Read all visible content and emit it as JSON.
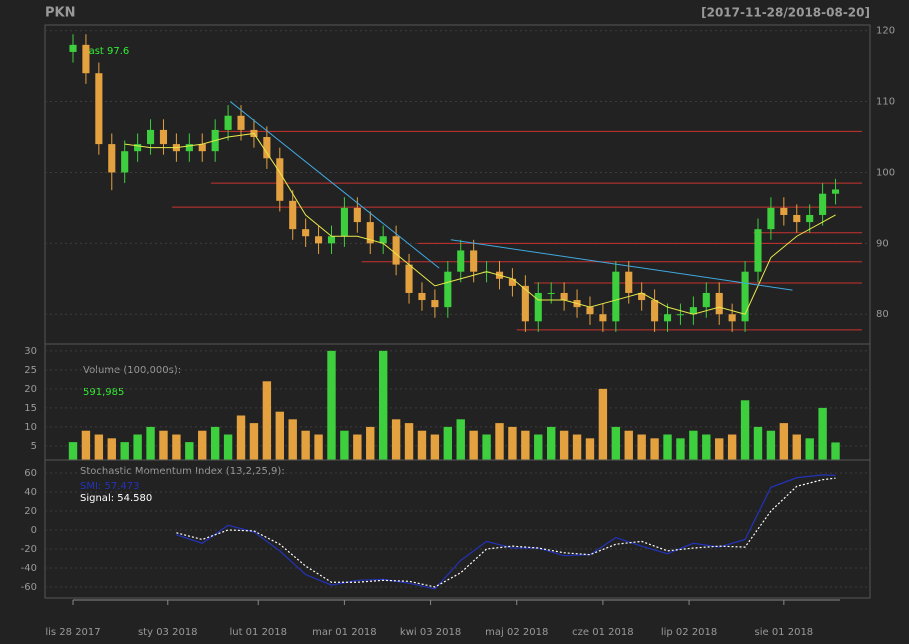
{
  "chart_data": [
    {
      "type": "candlestick",
      "title": "PKN",
      "subtitle": "[2017-11-28/2018-08-20]",
      "annotation": "Last 97.6",
      "up_color": "#3ecf3e",
      "down_color": "#e3a13f",
      "x": [
        0,
        3,
        6,
        9,
        12,
        15,
        18,
        21,
        24,
        27,
        30,
        33,
        36,
        39,
        42,
        45,
        48,
        51,
        54,
        57,
        60,
        63,
        66,
        69,
        72,
        75,
        78,
        81,
        84,
        87,
        90,
        93,
        96,
        99,
        102,
        105,
        108,
        111,
        114,
        117,
        120,
        123,
        126,
        129,
        132,
        135,
        138,
        141,
        144,
        147,
        150,
        153,
        156,
        159,
        162,
        165,
        168,
        171,
        174,
        177
      ],
      "open": [
        117,
        118,
        114,
        104,
        100,
        103,
        104,
        106,
        104,
        103,
        104,
        103,
        106,
        108,
        106,
        105,
        102,
        96,
        92,
        91,
        90,
        91,
        95,
        93,
        90,
        91,
        87,
        83,
        82,
        81,
        86,
        89,
        86,
        86,
        85,
        84,
        79,
        83,
        83,
        82,
        81,
        80,
        79,
        86,
        83,
        82,
        79,
        80,
        80,
        81,
        83,
        80,
        79,
        86,
        92,
        95,
        94,
        93,
        94,
        97
      ],
      "high": [
        119.5,
        119.5,
        115.5,
        105.5,
        104.5,
        105.5,
        107.5,
        107.5,
        105.5,
        105.5,
        105.5,
        107.5,
        109.5,
        109.5,
        107.5,
        106.5,
        103.5,
        97.5,
        93.5,
        92.5,
        92.5,
        96.5,
        96.5,
        94.5,
        92.5,
        92.5,
        88.5,
        84.5,
        83.5,
        87.5,
        90.5,
        90.5,
        87.5,
        87.5,
        86.5,
        85.5,
        84.5,
        84.5,
        84.5,
        83.5,
        82.5,
        81.5,
        87.5,
        87.5,
        84.5,
        83.5,
        81.5,
        81.5,
        82.5,
        84.5,
        84.5,
        81.5,
        87.5,
        93.5,
        96.5,
        96.5,
        95.5,
        95.5,
        98.5,
        99.1
      ],
      "low": [
        115.5,
        112.5,
        102.5,
        97.5,
        98.5,
        101.5,
        102.5,
        102.5,
        101.5,
        101.5,
        101.5,
        101.5,
        104.5,
        104.5,
        103.5,
        100.5,
        94.5,
        90.5,
        89.5,
        88.5,
        88.5,
        89.5,
        91.5,
        88.5,
        88.5,
        85.5,
        81.5,
        80.5,
        79.5,
        79.5,
        84.5,
        84.5,
        84.5,
        83.5,
        82.5,
        77.5,
        77.5,
        81.5,
        80.5,
        79.5,
        78.5,
        77.5,
        77.5,
        81.5,
        80.5,
        77.5,
        77.5,
        78.5,
        78.5,
        79.5,
        78.5,
        77.5,
        77.5,
        84.5,
        90.5,
        92.5,
        91.5,
        91.5,
        92.5,
        95.5
      ],
      "close": [
        118,
        114,
        104,
        100,
        103,
        104,
        106,
        104,
        103,
        104,
        103,
        106,
        108,
        106,
        105,
        102,
        96,
        92,
        91,
        90,
        91,
        95,
        93,
        90,
        91,
        87,
        83,
        82,
        81,
        86,
        89,
        86,
        86,
        85,
        84,
        79,
        83,
        83,
        82,
        81,
        80,
        79,
        86,
        83,
        82,
        79,
        80,
        80,
        81,
        83,
        80,
        79,
        86,
        92,
        95,
        94,
        93,
        94,
        97,
        97.6
      ],
      "sma": {
        "color": "#e8e84a",
        "x": [
          12,
          18,
          24,
          30,
          36,
          42,
          48,
          54,
          60,
          66,
          72,
          78,
          84,
          90,
          96,
          102,
          108,
          114,
          120,
          126,
          132,
          138,
          144,
          150,
          156,
          162,
          168,
          174,
          177
        ],
        "values": [
          104,
          103.5,
          103.5,
          104,
          105,
          105.5,
          100,
          94,
          91,
          91,
          90,
          87,
          84,
          85,
          86,
          85,
          82,
          82,
          81,
          82,
          83,
          81,
          80,
          81,
          80,
          88,
          91,
          93,
          94
        ]
      },
      "level_color": "#c8322f",
      "levels": [
        {
          "value": 105.8,
          "from": 32.6
        },
        {
          "value": 98.5,
          "from": 32
        },
        {
          "value": 95.1,
          "from": 23
        },
        {
          "value": 91.5,
          "from": 158
        },
        {
          "value": 90,
          "from": 80
        },
        {
          "value": 87.4,
          "from": 67
        },
        {
          "value": 84.4,
          "from": 107
        },
        {
          "value": 77.8,
          "from": 103
        }
      ],
      "trend_color": "#3fa9e0",
      "trendlines": [
        {
          "x": [
            36.5,
            85
          ],
          "values": [
            110,
            86.5
          ]
        },
        {
          "x": [
            87.7,
            167
          ],
          "values": [
            90.5,
            83.4
          ]
        }
      ],
      "xlim": [
        -6.5,
        185
      ],
      "ylim": [
        75.8,
        120.8
      ],
      "yticks": [
        80,
        90,
        100,
        110,
        120
      ]
    },
    {
      "type": "bar",
      "title": "Volume (100,000s):",
      "annotation": "591,985",
      "x": [
        0,
        3,
        6,
        9,
        12,
        15,
        18,
        21,
        24,
        27,
        30,
        33,
        36,
        39,
        42,
        45,
        48,
        51,
        54,
        57,
        60,
        63,
        66,
        69,
        72,
        75,
        78,
        81,
        84,
        87,
        90,
        93,
        96,
        99,
        102,
        105,
        108,
        111,
        114,
        117,
        120,
        123,
        126,
        129,
        132,
        135,
        138,
        141,
        144,
        147,
        150,
        153,
        156,
        159,
        162,
        165,
        168,
        171,
        174,
        177
      ],
      "values": [
        6,
        9,
        8,
        7,
        6,
        8,
        10,
        9,
        8,
        6,
        9,
        10,
        8,
        13,
        11,
        22,
        14,
        12,
        9,
        8,
        30,
        9,
        8,
        10,
        30,
        12,
        11,
        9,
        8,
        10,
        12,
        9,
        8,
        11,
        10,
        9,
        8,
        10,
        9,
        8,
        7,
        20,
        10,
        9,
        8,
        7,
        8,
        7,
        9,
        8,
        7,
        8,
        17,
        10,
        9,
        11,
        8,
        7,
        15,
        5.92
      ],
      "xlim": [
        -6.5,
        185
      ],
      "ylim": [
        1.3,
        31.8
      ],
      "yticks": [
        5,
        10,
        15,
        20,
        25,
        30
      ]
    },
    {
      "type": "line",
      "title": "Stochastic Momentum Index (13,2,25,9):",
      "x": [
        24,
        30,
        36,
        42,
        48,
        54,
        60,
        66,
        72,
        78,
        84,
        90,
        96,
        102,
        108,
        114,
        120,
        126,
        132,
        138,
        144,
        150,
        156,
        162,
        168,
        174,
        177
      ],
      "series": [
        {
          "name": "SMI: 57.473",
          "color": "#2233bb",
          "dashed": false,
          "values": [
            -5,
            -14,
            5,
            -2,
            -22,
            -47,
            -58,
            -53,
            -52,
            -56,
            -62,
            -32,
            -12,
            -19,
            -19,
            -27,
            -26,
            -8,
            -17,
            -25,
            -14,
            -18,
            -10,
            45,
            55,
            58,
            57.473
          ]
        },
        {
          "name": "Signal: 54.580",
          "color": "#ffffff",
          "dashed": true,
          "values": [
            -3,
            -10,
            0,
            -1,
            -15,
            -38,
            -55,
            -55,
            -53,
            -54,
            -60,
            -45,
            -20,
            -17,
            -19,
            -24,
            -26,
            -15,
            -12,
            -22,
            -19,
            -17,
            -18,
            20,
            46,
            53,
            54.58
          ]
        }
      ],
      "xlim": [
        -6.5,
        185
      ],
      "ylim": [
        -71.6,
        73.7
      ],
      "yticks": [
        -60,
        -40,
        -20,
        0,
        20,
        40,
        60
      ],
      "xticks": [
        {
          "value": 0,
          "label": "lis 28 2017"
        },
        {
          "value": 22,
          "label": "sty 03 2018"
        },
        {
          "value": 43,
          "label": "lut 01 2018"
        },
        {
          "value": 63,
          "label": "mar 01 2018"
        },
        {
          "value": 83,
          "label": "kwi 03 2018"
        },
        {
          "value": 103,
          "label": "maj 02 2018"
        },
        {
          "value": 123,
          "label": "cze 01 2018"
        },
        {
          "value": 143,
          "label": "lip 02 2018"
        },
        {
          "value": 165,
          "label": "sie 01 2018"
        }
      ]
    }
  ]
}
